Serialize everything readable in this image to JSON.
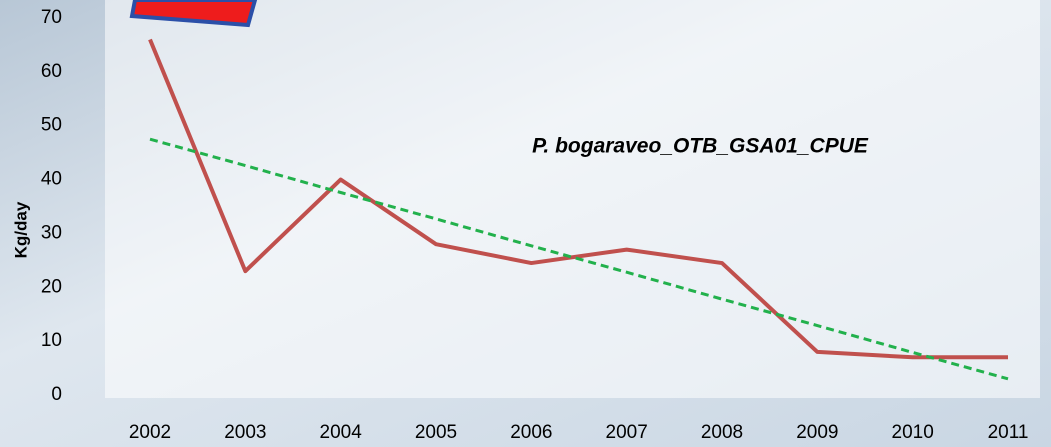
{
  "chart_data": {
    "type": "line",
    "y_label": "Kg/day",
    "annotation": "P. bogaraveo_OTB_GSA01_CPUE",
    "categories": [
      "2002",
      "2003",
      "2004",
      "2005",
      "2006",
      "2007",
      "2008",
      "2009",
      "2010",
      "2011"
    ],
    "series": [
      {
        "color": "#c0504d",
        "values": [
          66,
          23,
          40,
          28,
          24.5,
          27,
          24.5,
          8,
          7,
          7
        ]
      },
      {
        "color": "#22b14c",
        "dashed": true,
        "values": [
          47.5,
          42.6,
          37.6,
          32.7,
          27.7,
          22.8,
          17.8,
          12.9,
          7.9,
          3.0
        ]
      }
    ],
    "ylim": [
      0,
      70
    ],
    "yticks": [
      0,
      10,
      20,
      30,
      40,
      50,
      60,
      70
    ]
  }
}
